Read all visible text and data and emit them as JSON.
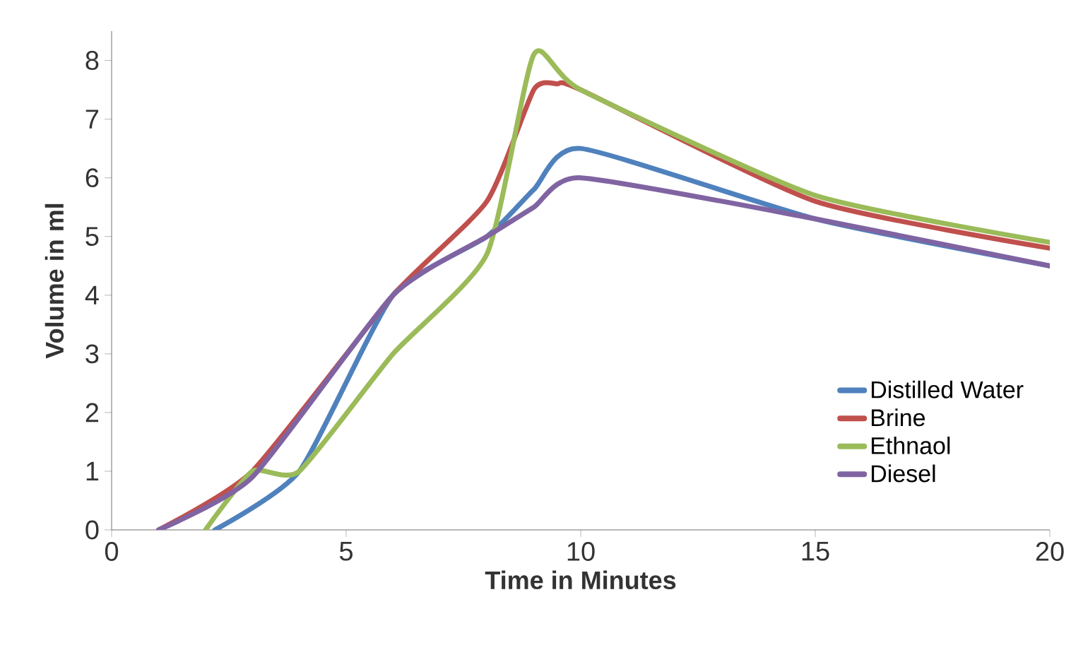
{
  "chart_data": {
    "type": "line",
    "xlabel": "Time in Minutes",
    "ylabel": "Volume in ml",
    "xlim": [
      0,
      20
    ],
    "ylim": [
      0,
      8.5
    ],
    "xticks": [
      0,
      5,
      10,
      15,
      20
    ],
    "yticks": [
      0,
      1,
      2,
      3,
      4,
      5,
      6,
      7,
      8
    ],
    "grid": false,
    "legend": "bottom right",
    "marker": "none",
    "line_style": "solid",
    "series": [
      {
        "name": "Distilled Water",
        "color": "#4f81bd",
        "x": [
          2.2,
          4,
          6,
          8,
          9,
          10,
          15,
          20
        ],
        "values": [
          0,
          1,
          4,
          5,
          5.8,
          6.5,
          5.3,
          4.5
        ]
      },
      {
        "name": "Brine",
        "color": "#c0504d",
        "x": [
          1,
          3,
          6,
          8,
          9,
          9.5,
          10,
          15,
          20
        ],
        "values": [
          0,
          1,
          4,
          5.6,
          7.5,
          7.6,
          7.5,
          5.6,
          4.8
        ]
      },
      {
        "name": "Ethnaol",
        "color": "#9bbb59",
        "x": [
          2,
          3,
          4,
          6,
          8,
          9,
          10,
          15,
          20
        ],
        "values": [
          0,
          1,
          1,
          3,
          4.7,
          8.1,
          7.5,
          5.7,
          4.9
        ]
      },
      {
        "name": "Diesel",
        "color": "#8064a2",
        "x": [
          1,
          3,
          6,
          8,
          9,
          10,
          15,
          20
        ],
        "values": [
          0,
          0.9,
          4,
          5,
          5.5,
          6,
          5.3,
          4.5
        ]
      }
    ]
  }
}
